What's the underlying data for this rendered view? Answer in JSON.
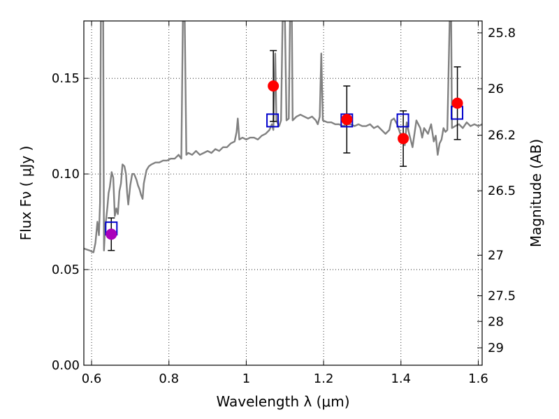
{
  "chart_data": {
    "type": "scatter",
    "xlabel": "Wavelength  λ (μm)",
    "ylabel": "Flux  Fν  ( μJy )",
    "y2label": "Magnitude (AB)",
    "xlim": [
      0.58,
      1.61
    ],
    "ylim": [
      0.0,
      0.18
    ],
    "grid": true,
    "xticks": [
      {
        "value": 0.6,
        "label": "0.6"
      },
      {
        "value": 0.8,
        "label": "0.8"
      },
      {
        "value": 1.0,
        "label": "1"
      },
      {
        "value": 1.2,
        "label": "1.2"
      },
      {
        "value": 1.4,
        "label": "1.4"
      },
      {
        "value": 1.6,
        "label": "1.6"
      }
    ],
    "yticks": [
      {
        "value": 0.0,
        "label": "0.00"
      },
      {
        "value": 0.05,
        "label": "0.05"
      },
      {
        "value": 0.1,
        "label": "0.10"
      },
      {
        "value": 0.15,
        "label": "0.15"
      }
    ],
    "y2ticks": [
      {
        "mag": 25.8,
        "label": "25.8"
      },
      {
        "mag": 26.0,
        "label": "26"
      },
      {
        "mag": 26.2,
        "label": "26.2"
      },
      {
        "mag": 26.5,
        "label": "26.5"
      },
      {
        "mag": 27.0,
        "label": "27"
      },
      {
        "mag": 27.5,
        "label": "27.5"
      },
      {
        "mag": 28.0,
        "label": "28"
      },
      {
        "mag": 29.0,
        "label": "29"
      }
    ],
    "model_spectrum": {
      "color": "#808080",
      "points": [
        [
          0.58,
          0.061
        ],
        [
          0.595,
          0.06
        ],
        [
          0.605,
          0.059
        ],
        [
          0.61,
          0.064
        ],
        [
          0.615,
          0.075
        ],
        [
          0.619,
          0.068
        ],
        [
          0.622,
          0.085
        ],
        [
          0.624,
          0.18
        ],
        [
          0.63,
          0.18
        ],
        [
          0.632,
          0.06
        ],
        [
          0.635,
          0.072
        ],
        [
          0.638,
          0.077
        ],
        [
          0.641,
          0.083
        ],
        [
          0.644,
          0.09
        ],
        [
          0.647,
          0.093
        ],
        [
          0.652,
          0.101
        ],
        [
          0.656,
          0.098
        ],
        [
          0.66,
          0.078
        ],
        [
          0.664,
          0.082
        ],
        [
          0.668,
          0.079
        ],
        [
          0.672,
          0.091
        ],
        [
          0.676,
          0.095
        ],
        [
          0.68,
          0.105
        ],
        [
          0.685,
          0.104
        ],
        [
          0.689,
          0.1
        ],
        [
          0.692,
          0.09
        ],
        [
          0.695,
          0.084
        ],
        [
          0.7,
          0.094
        ],
        [
          0.705,
          0.1
        ],
        [
          0.71,
          0.1
        ],
        [
          0.716,
          0.097
        ],
        [
          0.72,
          0.094
        ],
        [
          0.724,
          0.092
        ],
        [
          0.728,
          0.089
        ],
        [
          0.732,
          0.087
        ],
        [
          0.735,
          0.095
        ],
        [
          0.738,
          0.098
        ],
        [
          0.742,
          0.102
        ],
        [
          0.748,
          0.104
        ],
        [
          0.755,
          0.105
        ],
        [
          0.765,
          0.106
        ],
        [
          0.775,
          0.106
        ],
        [
          0.785,
          0.107
        ],
        [
          0.795,
          0.107
        ],
        [
          0.805,
          0.108
        ],
        [
          0.815,
          0.108
        ],
        [
          0.825,
          0.11
        ],
        [
          0.832,
          0.108
        ],
        [
          0.836,
          0.18
        ],
        [
          0.841,
          0.18
        ],
        [
          0.845,
          0.11
        ],
        [
          0.85,
          0.111
        ],
        [
          0.86,
          0.11
        ],
        [
          0.87,
          0.112
        ],
        [
          0.88,
          0.11
        ],
        [
          0.89,
          0.111
        ],
        [
          0.9,
          0.112
        ],
        [
          0.91,
          0.111
        ],
        [
          0.92,
          0.113
        ],
        [
          0.93,
          0.112
        ],
        [
          0.94,
          0.114
        ],
        [
          0.95,
          0.114
        ],
        [
          0.96,
          0.116
        ],
        [
          0.97,
          0.117
        ],
        [
          0.975,
          0.122
        ],
        [
          0.978,
          0.129
        ],
        [
          0.982,
          0.118
        ],
        [
          0.99,
          0.119
        ],
        [
          1.0,
          0.118
        ],
        [
          1.01,
          0.119
        ],
        [
          1.02,
          0.119
        ],
        [
          1.03,
          0.118
        ],
        [
          1.04,
          0.12
        ],
        [
          1.05,
          0.121
        ],
        [
          1.06,
          0.123
        ],
        [
          1.066,
          0.126
        ],
        [
          1.07,
          0.123
        ],
        [
          1.075,
          0.163
        ],
        [
          1.078,
          0.128
        ],
        [
          1.085,
          0.125
        ],
        [
          1.09,
          0.128
        ],
        [
          1.094,
          0.18
        ],
        [
          1.1,
          0.18
        ],
        [
          1.104,
          0.128
        ],
        [
          1.11,
          0.129
        ],
        [
          1.113,
          0.18
        ],
        [
          1.118,
          0.18
        ],
        [
          1.12,
          0.128
        ],
        [
          1.13,
          0.13
        ],
        [
          1.14,
          0.131
        ],
        [
          1.15,
          0.13
        ],
        [
          1.16,
          0.129
        ],
        [
          1.17,
          0.13
        ],
        [
          1.18,
          0.128
        ],
        [
          1.185,
          0.126
        ],
        [
          1.19,
          0.13
        ],
        [
          1.194,
          0.163
        ],
        [
          1.198,
          0.128
        ],
        [
          1.21,
          0.127
        ],
        [
          1.22,
          0.127
        ],
        [
          1.23,
          0.126
        ],
        [
          1.24,
          0.126
        ],
        [
          1.25,
          0.125
        ],
        [
          1.26,
          0.126
        ],
        [
          1.27,
          0.126
        ],
        [
          1.28,
          0.125
        ],
        [
          1.29,
          0.126
        ],
        [
          1.3,
          0.125
        ],
        [
          1.31,
          0.125
        ],
        [
          1.32,
          0.126
        ],
        [
          1.33,
          0.124
        ],
        [
          1.34,
          0.125
        ],
        [
          1.35,
          0.123
        ],
        [
          1.36,
          0.121
        ],
        [
          1.37,
          0.123
        ],
        [
          1.375,
          0.128
        ],
        [
          1.382,
          0.129
        ],
        [
          1.39,
          0.126
        ],
        [
          1.4,
          0.12
        ],
        [
          1.41,
          0.115
        ],
        [
          1.415,
          0.127
        ],
        [
          1.42,
          0.122
        ],
        [
          1.43,
          0.114
        ],
        [
          1.44,
          0.128
        ],
        [
          1.45,
          0.124
        ],
        [
          1.455,
          0.119
        ],
        [
          1.46,
          0.124
        ],
        [
          1.47,
          0.121
        ],
        [
          1.478,
          0.126
        ],
        [
          1.485,
          0.117
        ],
        [
          1.49,
          0.12
        ],
        [
          1.495,
          0.11
        ],
        [
          1.5,
          0.116
        ],
        [
          1.505,
          0.118
        ],
        [
          1.51,
          0.124
        ],
        [
          1.515,
          0.122
        ],
        [
          1.52,
          0.123
        ],
        [
          1.526,
          0.18
        ],
        [
          1.53,
          0.18
        ],
        [
          1.532,
          0.124
        ],
        [
          1.54,
          0.125
        ],
        [
          1.55,
          0.126
        ],
        [
          1.56,
          0.124
        ],
        [
          1.57,
          0.127
        ],
        [
          1.58,
          0.125
        ],
        [
          1.59,
          0.126
        ],
        [
          1.6,
          0.125
        ],
        [
          1.61,
          0.126
        ]
      ]
    },
    "model_photometry": {
      "marker": "open-square",
      "color": "#0000cc",
      "points": [
        {
          "x": 0.651,
          "y": 0.0715
        },
        {
          "x": 1.068,
          "y": 0.128
        },
        {
          "x": 1.26,
          "y": 0.128
        },
        {
          "x": 1.405,
          "y": 0.128
        },
        {
          "x": 1.545,
          "y": 0.132
        }
      ]
    },
    "observed": {
      "marker": "filled-circle",
      "points": [
        {
          "x": 0.651,
          "y": 0.0685,
          "err": 0.0085,
          "color": "#aa00bb"
        },
        {
          "x": 1.07,
          "y": 0.146,
          "err": 0.0185,
          "color": "#ff0000"
        },
        {
          "x": 1.26,
          "y": 0.1285,
          "err": 0.0175,
          "color": "#ff0000"
        },
        {
          "x": 1.406,
          "y": 0.1185,
          "err": 0.0145,
          "color": "#ff0000"
        },
        {
          "x": 1.546,
          "y": 0.137,
          "err": 0.019,
          "color": "#ff0000"
        }
      ]
    }
  }
}
